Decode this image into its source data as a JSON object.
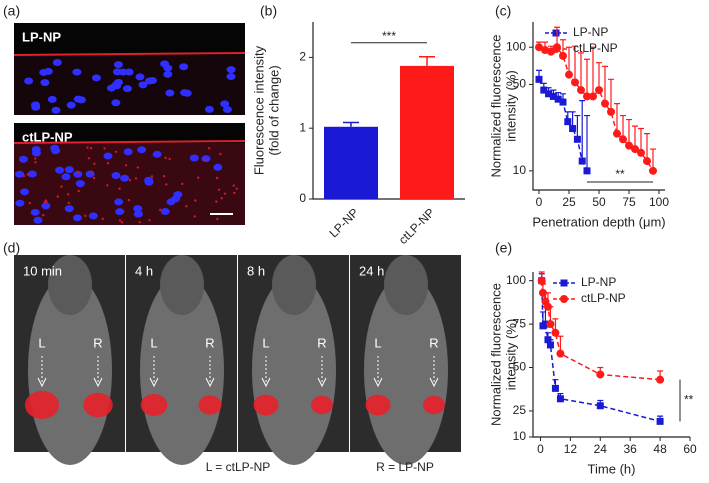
{
  "panel_a": {
    "label": "(a)",
    "images": [
      {
        "label": "LP-NP"
      },
      {
        "label": "ctLP-NP"
      }
    ]
  },
  "panel_d": {
    "label": "(d)",
    "times": [
      "10 min",
      "4 h",
      "8 h",
      "24 h"
    ],
    "left": "L",
    "right": "R",
    "caption_left": "L = ctLP-NP",
    "caption_right": "R = LP-NP"
  },
  "chart_data": [
    {
      "type": "bar",
      "label": "(b)",
      "ylabel": [
        "Fluorescence intensity",
        "(fold of change)"
      ],
      "categories": [
        "LP-NP",
        "ctLP-NP"
      ],
      "values": [
        1.02,
        1.88
      ],
      "errors": [
        0.06,
        0.13
      ],
      "colors": [
        "#1a1ad4",
        "#ff1a1a"
      ],
      "ylim": [
        0,
        2.5
      ],
      "yticks": [
        0,
        1,
        2
      ],
      "annotation": "***"
    },
    {
      "type": "line",
      "label": "(c)",
      "ylabel": [
        "Normalized fluorescence",
        "intensity (%)"
      ],
      "xlabel": "Penetration depth (μm)",
      "yscale": "log",
      "xlim": [
        -5,
        105
      ],
      "ylim": [
        7,
        160
      ],
      "xticks": [
        0,
        25,
        50,
        75,
        100
      ],
      "yticks": [
        10,
        50,
        100
      ],
      "legend": "upper left",
      "annotation": "**",
      "series": [
        {
          "name": "LP-NP",
          "color": "#1a1ad4",
          "marker": "square",
          "x": [
            0,
            4,
            8,
            12,
            16,
            20,
            24,
            28,
            32,
            36,
            40
          ],
          "values": [
            55,
            45,
            42,
            40,
            38,
            36,
            25,
            22,
            18,
            12,
            10
          ],
          "errors": [
            10,
            6,
            5,
            5,
            5,
            6,
            5,
            8,
            10,
            25,
            18
          ]
        },
        {
          "name": "ctLP-NP",
          "color": "#ff1a1a",
          "marker": "circle",
          "x": [
            0,
            5,
            10,
            15,
            20,
            25,
            30,
            35,
            40,
            45,
            50,
            55,
            60,
            65,
            70,
            75,
            80,
            85,
            90,
            95
          ],
          "values": [
            100,
            95,
            92,
            100,
            85,
            60,
            52,
            45,
            40,
            40,
            45,
            35,
            30,
            20,
            18,
            16,
            15,
            14,
            12,
            10
          ],
          "errors": [
            10,
            15,
            10,
            45,
            30,
            40,
            50,
            45,
            40,
            60,
            30,
            35,
            25,
            15,
            10,
            10,
            8,
            8,
            8,
            5
          ]
        }
      ]
    },
    {
      "type": "line",
      "label": "(e)",
      "ylabel": [
        "Normalized fluorescence",
        "intensity (%)"
      ],
      "xlabel": "Time (h)",
      "yscale": "linear",
      "xlim": [
        -3,
        60
      ],
      "ylim": [
        10,
        105
      ],
      "xticks": [
        0,
        12,
        24,
        36,
        48,
        60
      ],
      "yticks": [
        10,
        25,
        50,
        75,
        100
      ],
      "legend": "upper right",
      "annotation": "**",
      "series": [
        {
          "name": "LP-NP",
          "color": "#1a1ad4",
          "marker": "square",
          "x": [
            0.5,
            1,
            2,
            3,
            4,
            6,
            8,
            24,
            48
          ],
          "values": [
            100,
            74,
            75,
            66,
            63,
            38,
            32,
            28,
            19
          ],
          "errors": [
            4,
            8,
            10,
            4,
            3,
            5,
            3,
            3,
            3
          ]
        },
        {
          "name": "ctLP-NP",
          "color": "#ff1a1a",
          "marker": "circle",
          "x": [
            0.5,
            1,
            2,
            3,
            4,
            6,
            8,
            24,
            48
          ],
          "values": [
            100,
            93,
            88,
            85,
            75,
            70,
            58,
            46,
            43
          ],
          "errors": [
            5,
            5,
            5,
            8,
            10,
            8,
            10,
            4,
            5
          ]
        }
      ]
    }
  ]
}
